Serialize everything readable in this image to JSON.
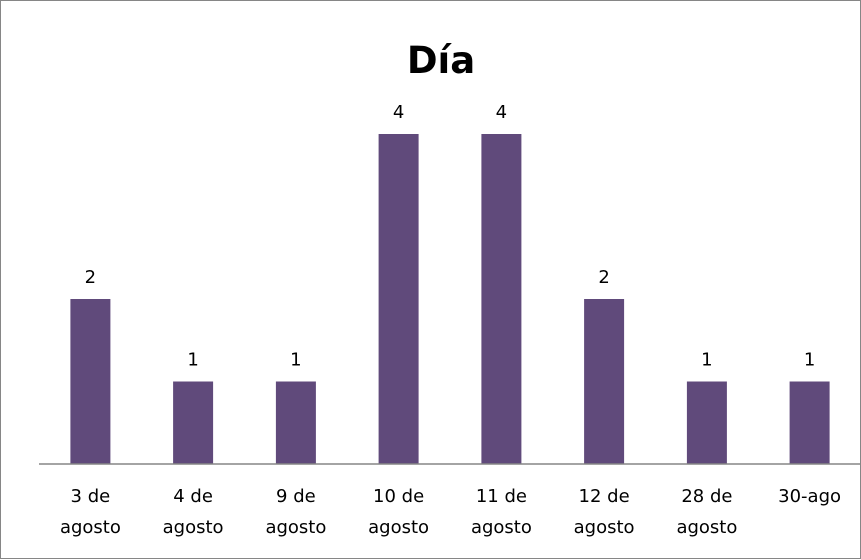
{
  "chart_data": {
    "type": "bar",
    "title": "Día",
    "xlabel": "",
    "ylabel": "",
    "categories": [
      [
        "3 de",
        "agosto"
      ],
      [
        "4 de",
        "agosto"
      ],
      [
        "9 de",
        "agosto"
      ],
      [
        "10 de",
        "agosto"
      ],
      [
        "11 de",
        "agosto"
      ],
      [
        "12 de",
        "agosto"
      ],
      [
        "28 de",
        "agosto"
      ],
      [
        "30-ago"
      ]
    ],
    "values": [
      2,
      1,
      1,
      4,
      4,
      2,
      1,
      1
    ],
    "ylim": [
      0,
      4
    ],
    "grid": false,
    "legend": "none",
    "bar_color": "#604a7b",
    "axis_color": "#868686"
  }
}
